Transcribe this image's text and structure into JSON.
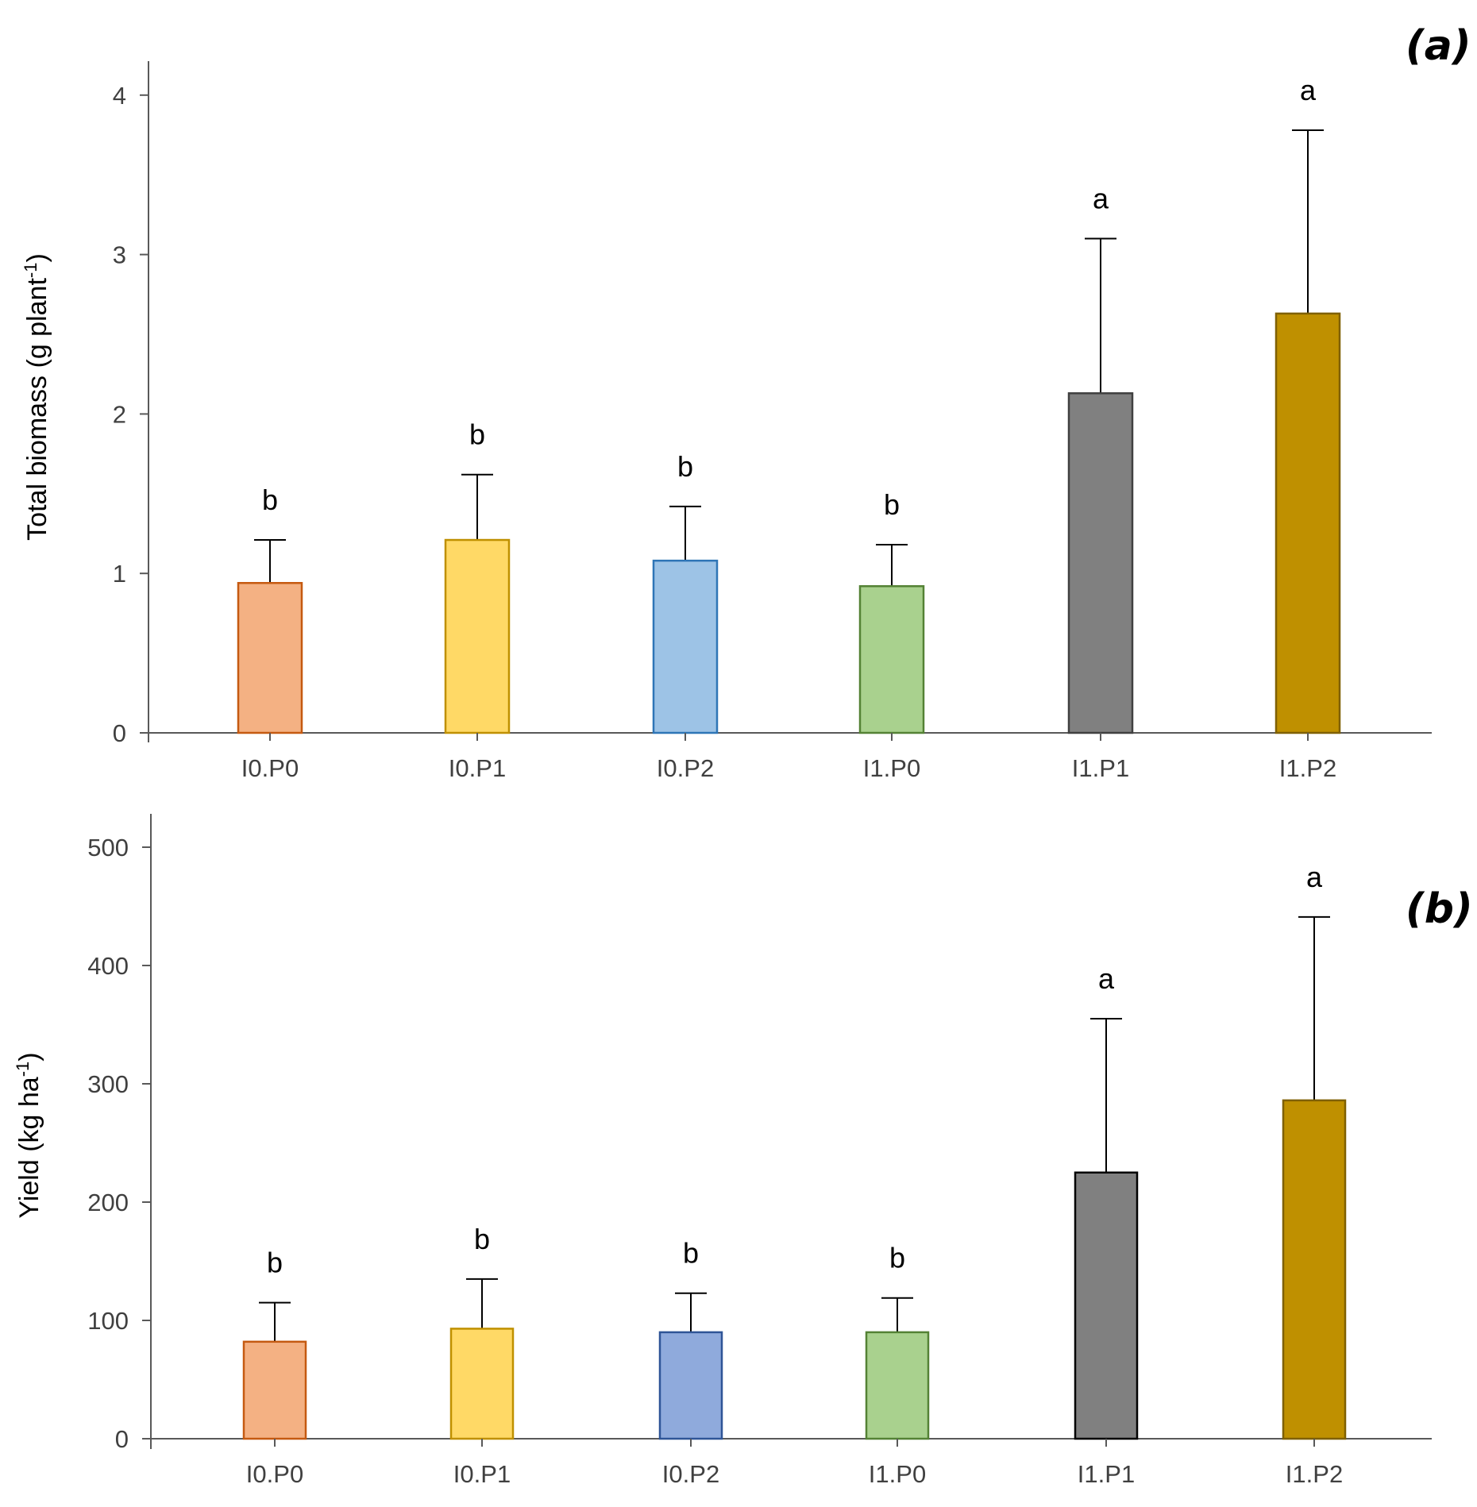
{
  "chart_data": [
    {
      "panel": "(a)",
      "type": "bar",
      "ylabel": "Total biomass (g plant",
      "ylabel_sup": "-1",
      "ylabel_close": ")",
      "ylim": [
        0,
        4.2
      ],
      "yticks": [
        0,
        1,
        2,
        3,
        4
      ],
      "categories": [
        "I0.P0",
        "I0.P1",
        "I0.P2",
        "I1.P0",
        "I1.P1",
        "I1.P2"
      ],
      "values": [
        0.94,
        1.21,
        1.08,
        0.92,
        2.13,
        2.63
      ],
      "errors": [
        0.27,
        0.41,
        0.34,
        0.26,
        0.97,
        1.15
      ],
      "significance": [
        "b",
        "b",
        "b",
        "b",
        "a",
        "a"
      ],
      "fill_colors": [
        "#F4B183",
        "#FFD966",
        "#9DC3E6",
        "#A9D18E",
        "#808080",
        "#BF9000"
      ],
      "stroke_colors": [
        "#C55A11",
        "#BF9000",
        "#2E75B6",
        "#548235",
        "#404040",
        "#7F6000"
      ]
    },
    {
      "panel": "(b)",
      "type": "bar",
      "ylabel": "Yield (kg ha",
      "ylabel_sup": "-1",
      "ylabel_close": ")",
      "ylim": [
        0,
        525
      ],
      "yticks": [
        0,
        100,
        200,
        300,
        400,
        500
      ],
      "categories": [
        "I0.P0",
        "I0.P1",
        "I0.P2",
        "I1.P0",
        "I1.P1",
        "I1.P2"
      ],
      "values": [
        82,
        93,
        90,
        90,
        225,
        286
      ],
      "errors": [
        33,
        42,
        33,
        29,
        130,
        155
      ],
      "significance": [
        "b",
        "b",
        "b",
        "b",
        "a",
        "a"
      ],
      "fill_colors": [
        "#F4B183",
        "#FFD966",
        "#8FAADC",
        "#A9D18E",
        "#808080",
        "#BF9000"
      ],
      "stroke_colors": [
        "#C55A11",
        "#BF9000",
        "#2F5597",
        "#548235",
        "#000000",
        "#7F6000"
      ]
    }
  ]
}
